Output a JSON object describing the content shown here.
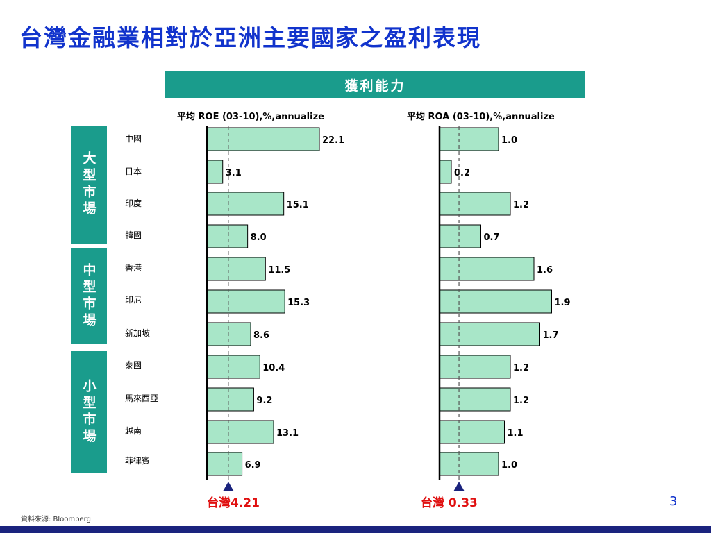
{
  "page_title": "台灣金融業相對於亞洲主要國家之盈利表現",
  "banner": "獲利能力",
  "markets": [
    {
      "label": "大型市場"
    },
    {
      "label": "中型市場"
    },
    {
      "label": "小型市場"
    }
  ],
  "countries": [
    "中國",
    "日本",
    "印度",
    "韓國",
    "香港",
    "印尼",
    "新加坡",
    "泰國",
    "馬來西亞",
    "越南",
    "菲律賓"
  ],
  "chart_data": [
    {
      "type": "bar",
      "orientation": "horizontal",
      "title": "平均 ROE (03-10),%,annualize",
      "categories": [
        "中國",
        "日本",
        "印度",
        "韓國",
        "香港",
        "印尼",
        "新加坡",
        "泰國",
        "馬來西亞",
        "越南",
        "菲律賓"
      ],
      "values": [
        22.1,
        3.1,
        15.1,
        8.0,
        11.5,
        15.3,
        8.6,
        10.4,
        9.2,
        13.1,
        6.9
      ],
      "labels": [
        "22.1",
        "3.1",
        "15.1",
        "8.0",
        "11.5",
        "15.3",
        "8.6",
        "10.4",
        "9.2",
        "13.1",
        "6.9"
      ],
      "reference": {
        "value": 4.21,
        "label": "台灣4.21"
      },
      "xlim": [
        0,
        25
      ]
    },
    {
      "type": "bar",
      "orientation": "horizontal",
      "title": "平均 ROA (03-10),%,annualize",
      "categories": [
        "中國",
        "日本",
        "印度",
        "韓國",
        "香港",
        "印尼",
        "新加坡",
        "泰國",
        "馬來西亞",
        "越南",
        "菲律賓"
      ],
      "values": [
        1.0,
        0.2,
        1.2,
        0.7,
        1.6,
        1.9,
        1.7,
        1.2,
        1.2,
        1.1,
        1.0
      ],
      "labels": [
        "1.0",
        "0.2",
        "1.2",
        "0.7",
        "1.6",
        "1.9",
        "1.7",
        "1.2",
        "1.2",
        "1.1",
        "1.0"
      ],
      "reference": {
        "value": 0.33,
        "label": "台灣 0.33"
      },
      "xlim": [
        0,
        2.2
      ]
    }
  ],
  "colors": {
    "bar_fill": "#a8e6c8",
    "teal": "#1a9c8c",
    "title_blue": "#1133cc",
    "taiwan_red": "#e01010",
    "marker_navy": "#1a237e"
  },
  "source": "資料來源: Bloomberg",
  "page_number": "3"
}
